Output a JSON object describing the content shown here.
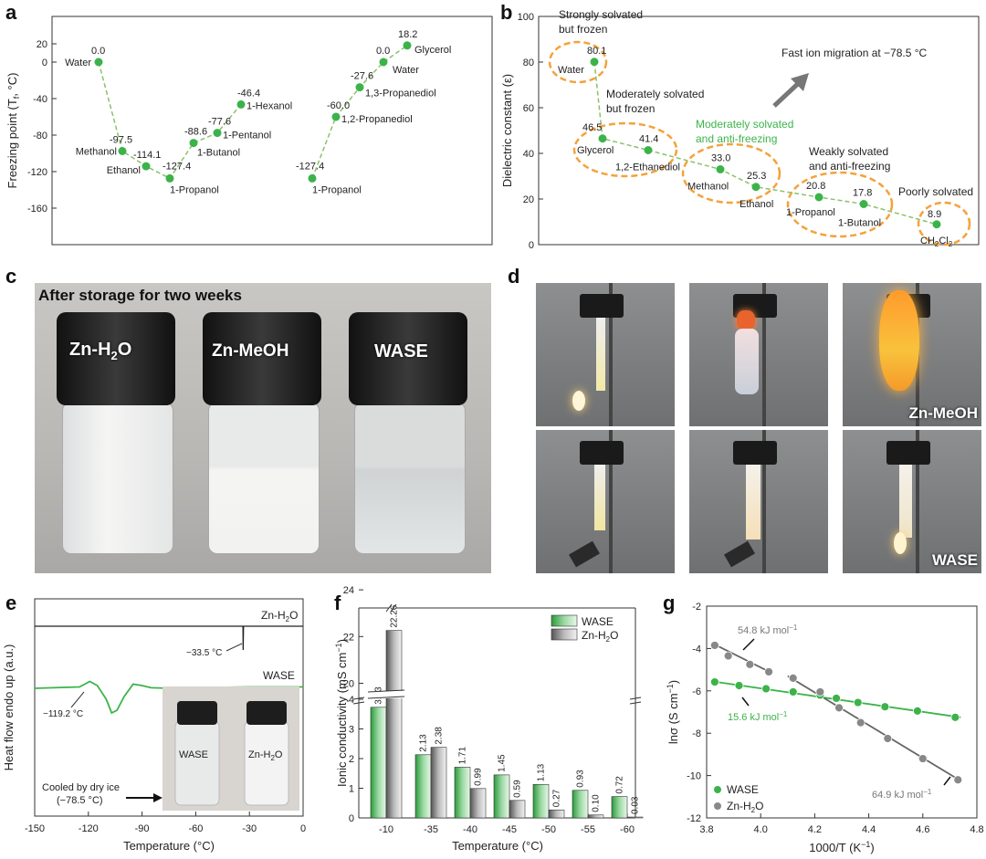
{
  "panel_labels": {
    "a": "a",
    "b": "b",
    "c": "c",
    "d": "d",
    "e": "e",
    "f": "f",
    "g": "g"
  },
  "chart_data": [
    {
      "panel": "a",
      "type": "scatter",
      "ylabel": "Freezing point (T",
      "ylabel_sub": "f",
      "ylabel_end": ", °C)",
      "ylim": [
        -160,
        20
      ],
      "yticks": [
        "20",
        "0",
        "-40",
        "-80",
        "-120",
        "-160"
      ],
      "series": [
        {
          "points": [
            {
              "x": 1,
              "y": 0.0,
              "vlabel": "0.0",
              "label": "Water"
            },
            {
              "x": 2,
              "y": -97.5,
              "vlabel": "-97.5",
              "label": "Methanol"
            },
            {
              "x": 3,
              "y": -114.1,
              "vlabel": "-114.1",
              "label": "Ethanol"
            },
            {
              "x": 4,
              "y": -127.4,
              "vlabel": "-127.4",
              "label": "1-Propanol"
            },
            {
              "x": 5,
              "y": -88.6,
              "vlabel": "-88.6",
              "label": "1-Butanol"
            },
            {
              "x": 6,
              "y": -77.6,
              "vlabel": "-77.6",
              "label": "1-Pentanol"
            },
            {
              "x": 7,
              "y": -46.4,
              "vlabel": "-46.4",
              "label": "1-Hexanol"
            }
          ]
        },
        {
          "points": [
            {
              "x": 9,
              "y": -127.4,
              "vlabel": "-127.4",
              "label": "1-Propanol"
            },
            {
              "x": 10,
              "y": -60.0,
              "vlabel": "-60.0",
              "label": "1,2-Propanediol"
            },
            {
              "x": 11,
              "y": -27.6,
              "vlabel": "-27.6",
              "label": "1,3-Propanediol"
            },
            {
              "x": 12,
              "y": 0.0,
              "vlabel": "0.0",
              "label": "Water"
            },
            {
              "x": 13,
              "y": 18.2,
              "vlabel": "18.2",
              "label": "Glycerol"
            }
          ]
        }
      ]
    },
    {
      "panel": "b",
      "type": "scatter",
      "ylabel": "Dielectric constant (ε)",
      "ylim": [
        0,
        100
      ],
      "yticks": [
        "100",
        "80",
        "60",
        "40",
        "20",
        "0"
      ],
      "points": [
        {
          "y": 80.1,
          "vlabel": "80.1",
          "label": "Water"
        },
        {
          "y": 46.5,
          "vlabel": "46.5",
          "label": "Glycerol"
        },
        {
          "y": 41.4,
          "vlabel": "41.4",
          "label": "1,2-Ethanediol"
        },
        {
          "y": 33.0,
          "vlabel": "33.0",
          "label": "Methanol"
        },
        {
          "y": 25.3,
          "vlabel": "25.3",
          "label": "Ethanol"
        },
        {
          "y": 20.8,
          "vlabel": "20.8",
          "label": "1-Propanol"
        },
        {
          "y": 17.8,
          "vlabel": "17.8",
          "label": "1-Butanol"
        },
        {
          "y": 8.9,
          "vlabel": "8.9",
          "label": "CH",
          "label_sub": "2",
          "label_mid": "Cl",
          "label_sub2": "2"
        }
      ],
      "annotations": {
        "strong1": "Strongly solvated",
        "strong2": "but frozen",
        "mod1": "Moderately solvated",
        "mod2": "but frozen",
        "modaf1": "Moderately solvated",
        "modaf2": "and anti-freezing",
        "weak1": "Weakly solvated",
        "weak2": "and anti-freezing",
        "poor": "Poorly solvated",
        "fast": "Fast ion migration at −78.5 °C"
      }
    },
    {
      "panel": "e",
      "type": "line",
      "xlabel": "Temperature (°C)",
      "ylabel": "Heat flow endo up (a.u.)",
      "xlim": [
        -150,
        0
      ],
      "xticks": [
        "-150",
        "-120",
        "-90",
        "-60",
        "-30",
        "0"
      ],
      "series": [
        {
          "name": "Zn-H",
          "name_sub": "2",
          "name_end": "O",
          "annotation": "−33.5 °C",
          "x": [
            -150,
            -33.6,
            -33.5,
            -33.3,
            0
          ],
          "y": [
            0,
            0,
            -1,
            0,
            0
          ]
        },
        {
          "name": "WASE",
          "annotation": "−119.2 °C",
          "x": [
            -150,
            -125,
            -119.2,
            -115,
            -110,
            -107,
            -104,
            -100,
            -95,
            -90,
            -85,
            -75,
            -60,
            -30,
            0
          ],
          "y": [
            0,
            0.05,
            0.25,
            0.1,
            -0.4,
            -0.9,
            -0.8,
            -0.3,
            0.15,
            0.1,
            0.02,
            0,
            0.02,
            0.05,
            0.05
          ]
        }
      ],
      "inset": {
        "label1": "WASE",
        "label2": "Zn-H",
        "label2_sub": "2",
        "label2_end": "O",
        "note1": "Cooled by dry ice",
        "note2": "(−78.5 °C)"
      }
    },
    {
      "panel": "f",
      "type": "bar",
      "xlabel": "Temperature (°C)",
      "ylabel": "Ionic conductivity (mS cm",
      "ylabel_sup": "−1",
      "ylabel_end": ")",
      "categories": [
        "-10",
        "-35",
        "-40",
        "-45",
        "-50",
        "-55",
        "-60"
      ],
      "yticks_low": [
        "0",
        "1",
        "2",
        "3",
        "4"
      ],
      "yticks_high": [
        "20",
        "22",
        "24"
      ],
      "series": [
        {
          "name": "WASE",
          "values": [
            3.73,
            2.13,
            1.71,
            1.45,
            1.13,
            0.93,
            0.72
          ],
          "labels": [
            "3.73",
            "2.13",
            "1.71",
            "1.45",
            "1.13",
            "0.93",
            "0.72"
          ]
        },
        {
          "name": "Zn-H",
          "name_sub": "2",
          "name_end": "O",
          "values": [
            22.26,
            2.38,
            0.99,
            0.59,
            0.27,
            0.1,
            0.03
          ],
          "labels": [
            "22.26",
            "2.38",
            "0.99",
            "0.59",
            "0.27",
            "0.10",
            "0.03"
          ]
        }
      ]
    },
    {
      "panel": "g",
      "type": "scatter",
      "xlabel": "1000/T (K",
      "xlabel_sup": "−1",
      "xlabel_end": ")",
      "ylabel": "lnσ (S cm",
      "ylabel_sup": "−1",
      "ylabel_end": ")",
      "xlim": [
        3.8,
        4.8
      ],
      "ylim": [
        -12,
        -2
      ],
      "xticks": [
        "3.8",
        "4.0",
        "4.2",
        "4.4",
        "4.6",
        "4.8"
      ],
      "yticks": [
        "-2",
        "-4",
        "-6",
        "-8",
        "-10",
        "-12"
      ],
      "series": [
        {
          "name": "WASE",
          "color": "#3cb34a",
          "x": [
            3.83,
            3.92,
            4.02,
            4.12,
            4.22,
            4.28,
            4.36,
            4.46,
            4.58,
            4.72
          ],
          "y": [
            -5.58,
            -5.75,
            -5.9,
            -6.05,
            -6.2,
            -6.35,
            -6.55,
            -6.75,
            -6.95,
            -7.25
          ]
        },
        {
          "name": "Zn-H",
          "name_sub": "2",
          "name_end": "O",
          "color": "#888888",
          "x": [
            3.83,
            3.88,
            3.96,
            4.03,
            4.12,
            4.22,
            4.29,
            4.37,
            4.47,
            4.6,
            4.73
          ],
          "y": [
            -3.85,
            -4.35,
            -4.75,
            -5.1,
            -5.4,
            -6.05,
            -6.8,
            -7.5,
            -8.25,
            -9.2,
            -10.2
          ]
        }
      ],
      "annotations": {
        "e1": "54.8 kJ mol",
        "e2": "15.6 kJ mol",
        "e3": "64.9 kJ mol",
        "sup": "−1"
      }
    }
  ],
  "photos": {
    "c_title": "After storage for two weeks",
    "c_labels": [
      "Zn-H",
      "Zn-MeOH",
      "WASE"
    ],
    "c_sub": "2",
    "c_end": "O",
    "d_top_label": "Zn-MeOH",
    "d_bottom_label": "WASE"
  },
  "colors": {
    "green": "#3cb34a",
    "gray": "#888888",
    "orange": "#f4a23a",
    "dash": "#8ac26a"
  }
}
